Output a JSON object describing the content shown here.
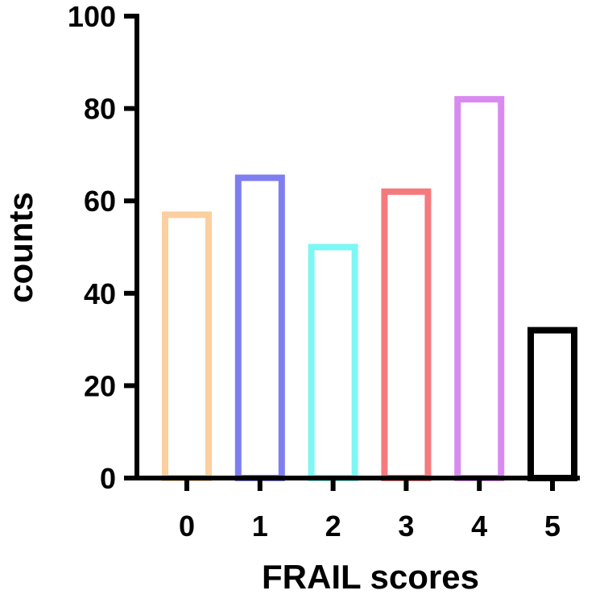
{
  "chart_data": {
    "type": "bar",
    "categories": [
      "0",
      "1",
      "2",
      "3",
      "4",
      "5"
    ],
    "values": [
      57,
      65,
      50,
      62,
      82,
      32
    ],
    "colors": [
      "#fbcf9e",
      "#7e7ef0",
      "#7ef7f4",
      "#f57a7e",
      "#d98af0",
      "#000000"
    ],
    "bar_style": "outline",
    "xlabel": "FRAIL scores",
    "ylabel": "counts",
    "ylim": [
      0,
      100
    ],
    "yticks": [
      "0",
      "20",
      "40",
      "60",
      "80",
      "100"
    ],
    "grid": false,
    "legend": "none"
  }
}
